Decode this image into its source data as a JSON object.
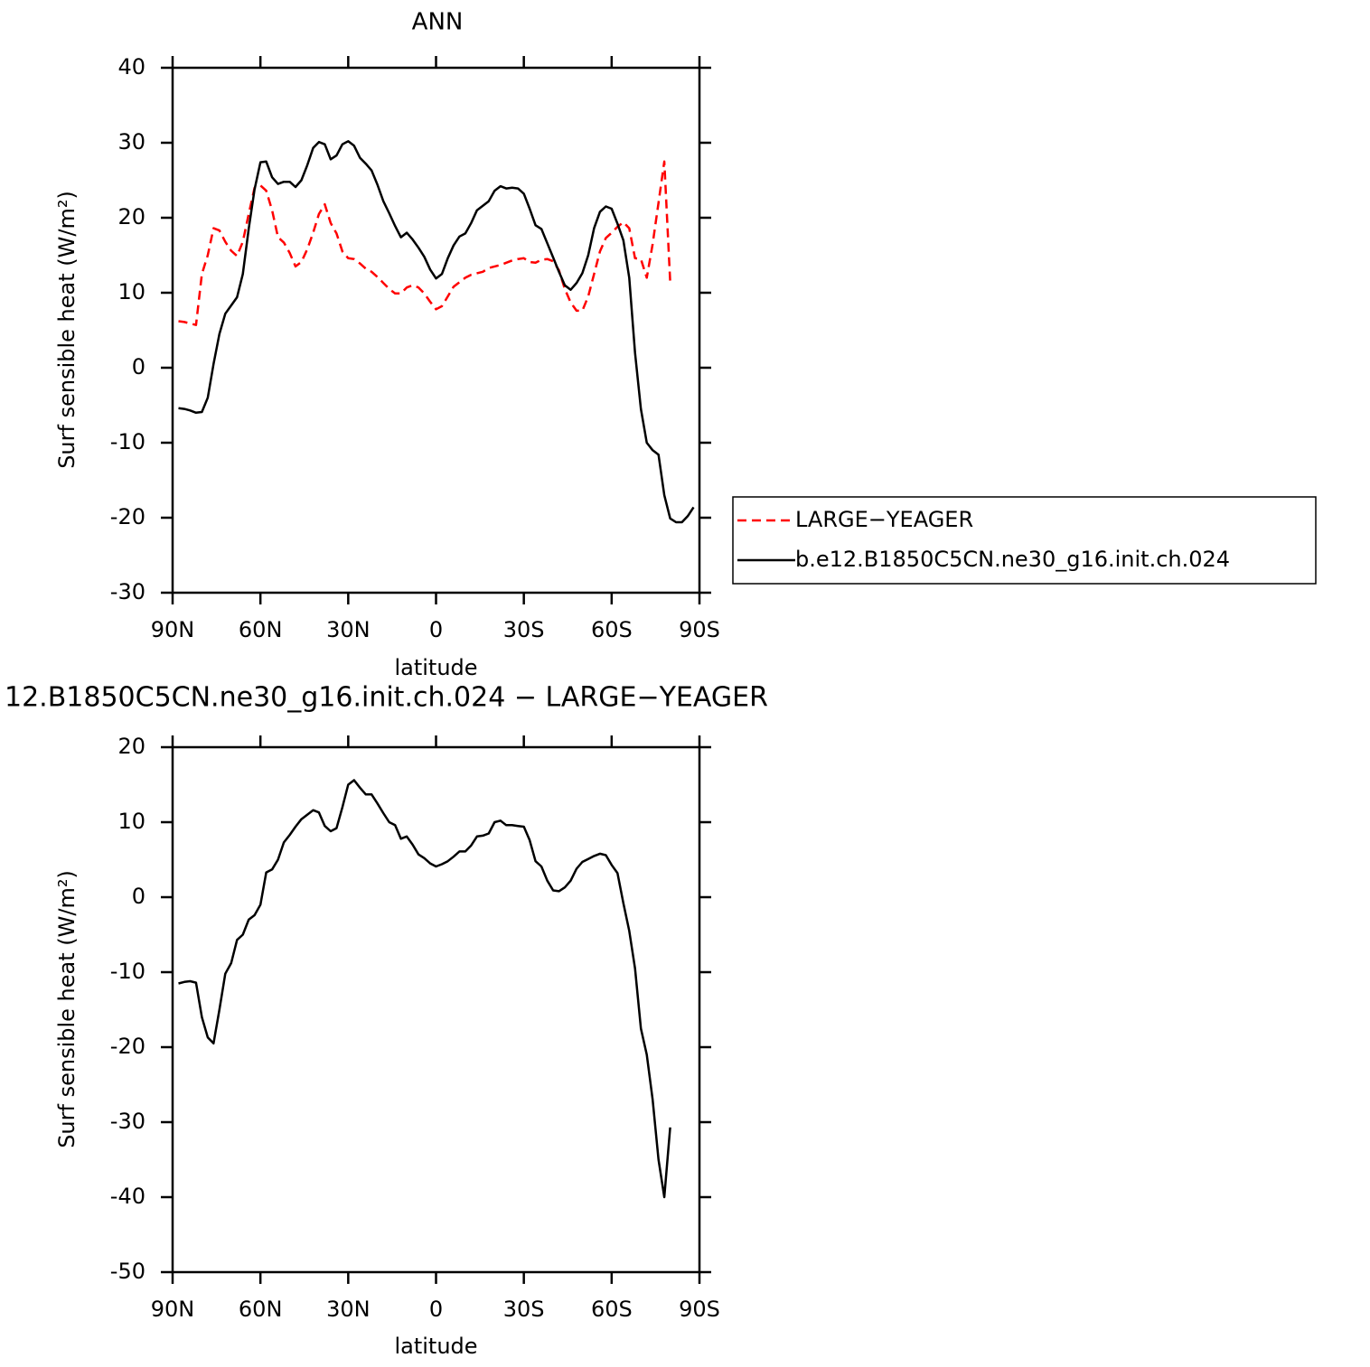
{
  "chart_data": [
    {
      "type": "line",
      "title": "ANN",
      "xlabel": "latitude",
      "ylabel": "Surf sensible heat (W/m²)",
      "xlim": [
        90,
        -90
      ],
      "ylim": [
        -30,
        40
      ],
      "xticks": [
        {
          "value": 90,
          "label": "90N"
        },
        {
          "value": 60,
          "label": "60N"
        },
        {
          "value": 30,
          "label": "30N"
        },
        0,
        {
          "value": -30,
          "label": "30S"
        },
        {
          "value": -60,
          "label": "60S"
        },
        {
          "value": -90,
          "label": "90S"
        }
      ],
      "yticks": [
        -30,
        -20,
        -10,
        0,
        10,
        20,
        30,
        40
      ],
      "legend": "right",
      "x": [
        88,
        86,
        84,
        82,
        80,
        78,
        76,
        74,
        72,
        70,
        68,
        66,
        64,
        62,
        60,
        58,
        56,
        54,
        52,
        50,
        48,
        46,
        44,
        42,
        40,
        38,
        36,
        34,
        32,
        30,
        28,
        26,
        24,
        22,
        20,
        18,
        16,
        14,
        12,
        10,
        8,
        6,
        4,
        2,
        0,
        -2,
        -4,
        -6,
        -8,
        -10,
        -12,
        -14,
        -16,
        -18,
        -20,
        -22,
        -24,
        -26,
        -28,
        -30,
        -32,
        -34,
        -36,
        -38,
        -40,
        -42,
        -44,
        -46,
        -48,
        -50,
        -52,
        -54,
        -56,
        -58,
        -60,
        -62,
        -64,
        -66,
        -68,
        -70,
        -72,
        -74,
        -76,
        -78,
        -80,
        -82,
        -84,
        -86,
        -88
      ],
      "series": [
        {
          "name": "LARGE−YEAGER",
          "color": "#ff0000",
          "dashed": true,
          "values": [
            6.2,
            6.1,
            5.9,
            5.7,
            12.5,
            15,
            18.6,
            18.3,
            16.8,
            15.6,
            14.9,
            16.8,
            20.5,
            24,
            24.3,
            23.6,
            21,
            17.4,
            16.7,
            15.3,
            13.5,
            14.1,
            15.8,
            18,
            20.5,
            21.8,
            19.3,
            17.9,
            15.5,
            14.6,
            14.5,
            13.9,
            13.2,
            12.8,
            12.1,
            11.3,
            10.5,
            9.9,
            9.9,
            10.7,
            11,
            10.7,
            9.9,
            8.8,
            7.8,
            8.2,
            9.5,
            10.8,
            11.4,
            12,
            12.4,
            12.6,
            12.8,
            13.3,
            13.5,
            13.7,
            14,
            14.3,
            14.5,
            14.6,
            14.1,
            14,
            14.4,
            14.5,
            14.2,
            13,
            10.5,
            8.7,
            7.6,
            7.6,
            9.5,
            12.5,
            15.5,
            17.3,
            18,
            18.8,
            19.4,
            18.6,
            14.6,
            14.5,
            12,
            16.5,
            22,
            27.5,
            11.5,
            null,
            null,
            null,
            null
          ]
        },
        {
          "name": "b.e12.B1850C5CN.ne30_g16.init.ch.024",
          "color": "#000000",
          "dashed": false,
          "values": [
            -5.4,
            -5.5,
            -5.7,
            -6,
            -5.9,
            -4,
            0.5,
            4.5,
            7.2,
            8.3,
            9.4,
            12.5,
            18.5,
            23.8,
            27.4,
            27.5,
            25.4,
            24.5,
            24.8,
            24.8,
            24.1,
            25,
            27,
            29.3,
            30.1,
            29.8,
            27.8,
            28.3,
            29.8,
            30.2,
            29.6,
            28,
            27.2,
            26.3,
            24.4,
            22.2,
            20.6,
            18.9,
            17.4,
            18,
            17.1,
            16,
            14.8,
            13.1,
            11.9,
            12.5,
            14.6,
            16.3,
            17.5,
            17.9,
            19.3,
            21,
            21.6,
            22.2,
            23.6,
            24.2,
            23.9,
            24,
            23.9,
            23.2,
            21.2,
            19,
            18.5,
            16.6,
            14.7,
            12.8,
            11,
            10.4,
            11.3,
            12.6,
            15,
            18.6,
            20.8,
            21.5,
            21.2,
            19.2,
            17,
            12,
            2,
            -5.5,
            -10,
            -11,
            -11.6,
            -17,
            -20.1,
            -20.6,
            -20.6,
            -19.8,
            -18.6
          ]
        }
      ]
    },
    {
      "type": "line",
      "title": "12.B1850C5CN.ne30_g16.init.ch.024 − LARGE−YEAGER",
      "xlabel": "latitude",
      "ylabel": "Surf sensible heat (W/m²)",
      "xlim": [
        90,
        -90
      ],
      "ylim": [
        -50,
        20
      ],
      "xticks": [
        {
          "value": 90,
          "label": "90N"
        },
        {
          "value": 60,
          "label": "60N"
        },
        {
          "value": 30,
          "label": "30N"
        },
        0,
        {
          "value": -30,
          "label": "30S"
        },
        {
          "value": -60,
          "label": "60S"
        },
        {
          "value": -90,
          "label": "90S"
        }
      ],
      "yticks": [
        -50,
        -40,
        -30,
        -20,
        -10,
        0,
        10,
        20
      ],
      "color": "#000000",
      "x": [
        88,
        86,
        84,
        82,
        80,
        78,
        76,
        74,
        72,
        70,
        68,
        66,
        64,
        62,
        60,
        58,
        56,
        54,
        52,
        50,
        48,
        46,
        44,
        42,
        40,
        38,
        36,
        34,
        32,
        30,
        28,
        26,
        24,
        22,
        20,
        18,
        16,
        14,
        12,
        10,
        8,
        6,
        4,
        2,
        0,
        -2,
        -4,
        -6,
        -8,
        -10,
        -12,
        -14,
        -16,
        -18,
        -20,
        -22,
        -24,
        -26,
        -28,
        -30,
        -32,
        -34,
        -36,
        -38,
        -40,
        -42,
        -44,
        -46,
        -48,
        -50,
        -52,
        -54,
        -56,
        -58,
        -60,
        -62,
        -64,
        -66,
        -68,
        -70,
        -72,
        -74,
        -76,
        -78,
        -80,
        -82,
        -84,
        -86,
        -88
      ],
      "values": [
        -11.5,
        -11.3,
        -11.2,
        -11.4,
        -16,
        -18.7,
        -19.5,
        -15,
        -10.2,
        -8.8,
        -5.7,
        -5,
        -3,
        -2.4,
        -1,
        3.3,
        3.7,
        5,
        7.3,
        8.3,
        9.4,
        10.4,
        11,
        11.6,
        11.3,
        9.5,
        8.8,
        9.2,
        12,
        15,
        15.6,
        14.6,
        13.7,
        13.7,
        12.5,
        11.2,
        10,
        9.6,
        7.8,
        8.1,
        7,
        5.7,
        5.2,
        4.5,
        4.1,
        4.4,
        4.8,
        5.4,
        6.1,
        6.1,
        6.9,
        8.1,
        8.2,
        8.5,
        10,
        10.2,
        9.6,
        9.6,
        9.5,
        9.4,
        7.6,
        4.8,
        4.1,
        2.2,
        0.9,
        0.8,
        1.3,
        2.2,
        3.8,
        4.7,
        5.1,
        5.5,
        5.8,
        5.6,
        4.3,
        3.2,
        -0.8,
        -4.5,
        -9.5,
        -17.5,
        -21,
        -27,
        -35,
        -40,
        -30.7,
        null,
        null,
        null,
        null
      ]
    }
  ]
}
